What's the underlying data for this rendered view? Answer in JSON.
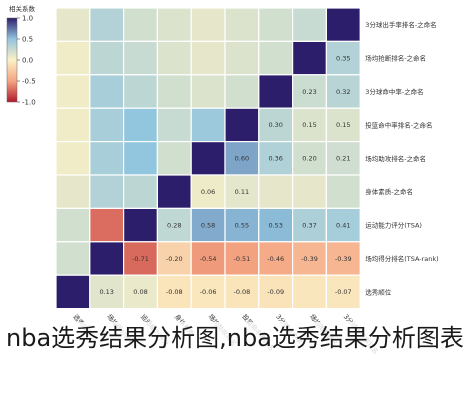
{
  "caption": "nba选秀结果分析图,nba选秀结果分析图表",
  "colors": {
    "low": "#b2182b",
    "mid_low": "#f4a582",
    "mid": "#fbf0c5",
    "mid_high": "#92c5de",
    "high": "#2d1e6b"
  },
  "chart_data": {
    "type": "heatmap",
    "title": "",
    "colorbar": {
      "title": "相关系数",
      "ticks": [
        "1.0",
        "0.5",
        "0.0",
        "-0.5",
        "-1.0"
      ],
      "range": [
        -1.0,
        1.0
      ]
    },
    "rows": [
      "3分球出手率排名-之命名",
      "场均抢断排名-之命名",
      "3分球命中率-之命名",
      "投篮命中率排名-之命名",
      "场均助攻排名-之命名",
      "身体素质-之命名",
      "运动能力评分(TSA)",
      "场均得分排名(TSA-rank)",
      "选秀顺位"
    ],
    "columns": [
      "选秀顺位",
      "场均得分排名",
      "运动能力评分",
      "身体素质",
      "场均助攻排名",
      "投篮命中率排名",
      "3分球命中率",
      "场均抢断排名",
      "3分球出手率排名"
    ],
    "values": [
      [
        0.1,
        0.35,
        0.2,
        0.15,
        0.1,
        0.15,
        0.2,
        0.25,
        1.0
      ],
      [
        0.05,
        0.3,
        0.25,
        0.15,
        0.1,
        0.15,
        0.2,
        1.0,
        0.35
      ],
      [
        0.05,
        0.4,
        0.3,
        0.2,
        0.15,
        0.2,
        1.0,
        0.23,
        0.32
      ],
      [
        0.05,
        0.4,
        0.5,
        0.25,
        0.45,
        1.0,
        0.3,
        0.15,
        0.15
      ],
      [
        0.05,
        0.4,
        0.5,
        0.2,
        1.0,
        0.6,
        0.36,
        0.2,
        0.21
      ],
      [
        0.1,
        0.35,
        0.3,
        1.0,
        0.06,
        0.11,
        0.1,
        0.1,
        0.2
      ],
      [
        0.2,
        -0.7,
        1.0,
        0.28,
        0.58,
        0.55,
        0.53,
        0.37,
        0.41
      ],
      [
        0.2,
        1.0,
        -0.71,
        -0.2,
        -0.54,
        -0.51,
        -0.46,
        -0.39,
        -0.39
      ],
      [
        1.0,
        0.13,
        0.08,
        -0.08,
        -0.06,
        -0.08,
        -0.09,
        -0.07,
        -0.07
      ]
    ],
    "cell_labels": [
      [
        "",
        "",
        "",
        "",
        "",
        "",
        "",
        "",
        ""
      ],
      [
        "",
        "",
        "",
        "",
        "",
        "",
        "",
        "",
        "0.35"
      ],
      [
        "",
        "",
        "",
        "",
        "",
        "",
        "",
        "0.23",
        "0.32"
      ],
      [
        "",
        "",
        "",
        "",
        "",
        "",
        "0.30",
        "0.15",
        "0.15"
      ],
      [
        "",
        "",
        "",
        "",
        "",
        "0.60",
        "0.36",
        "0.20",
        "0.21"
      ],
      [
        "",
        "",
        "",
        "",
        "0.06",
        "0.11",
        "",
        "",
        ""
      ],
      [
        "",
        "",
        "",
        "0.28",
        "0.58",
        "0.55",
        "0.53",
        "0.37",
        "0.41"
      ],
      [
        "",
        "",
        "-0.71",
        "-0.20",
        "-0.54",
        "-0.51",
        "-0.46",
        "-0.39",
        "-0.39"
      ],
      [
        "",
        "0.13",
        "0.08",
        "-0.08",
        "-0.06",
        "-0.08",
        "-0.09",
        "",
        "-0.07"
      ]
    ]
  }
}
